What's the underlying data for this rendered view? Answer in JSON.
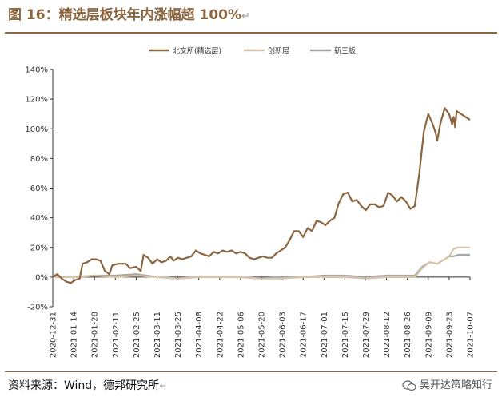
{
  "header": {
    "title": "图 16：精选层板块年内涨幅超 100%",
    "return_mark": "↵"
  },
  "footer": {
    "source": "资料来源：Wind，德邦研究所",
    "return_mark": "↵",
    "watermark": "吴开达策略知行"
  },
  "chart_data": {
    "type": "line",
    "title": "",
    "xlabel": "",
    "ylabel": "",
    "ylim": [
      -20,
      140
    ],
    "y_unit": "%",
    "yticks": [
      "140%",
      "120%",
      "100%",
      "80%",
      "60%",
      "40%",
      "20%",
      "0%",
      "-20%"
    ],
    "xticks": [
      "2020-12-31",
      "2021-01-14",
      "2021-01-28",
      "2021-02-11",
      "2021-02-25",
      "2021-03-11",
      "2021-03-25",
      "2021-04-08",
      "2021-04-22",
      "2021-05-06",
      "2021-05-20",
      "2021-06-03",
      "2021-06-17",
      "2021-07-01",
      "2021-07-15",
      "2021-07-29",
      "2021-08-12",
      "2021-08-26",
      "2021-09-09",
      "2021-09-23",
      "2021-10-07"
    ],
    "legend_position": "top",
    "grid": false,
    "series": [
      {
        "name": "北交所(精选层)",
        "color": "#8B6640",
        "points": [
          [
            "2020-12-31",
            0
          ],
          [
            "2021-01-03",
            2
          ],
          [
            "2021-01-06",
            -1
          ],
          [
            "2021-01-09",
            -3
          ],
          [
            "2021-01-12",
            -4
          ],
          [
            "2021-01-15",
            -2
          ],
          [
            "2021-01-18",
            -1
          ],
          [
            "2021-01-20",
            9
          ],
          [
            "2021-01-23",
            10
          ],
          [
            "2021-01-26",
            12
          ],
          [
            "2021-01-29",
            12
          ],
          [
            "2021-02-01",
            11
          ],
          [
            "2021-02-04",
            4
          ],
          [
            "2021-02-07",
            2
          ],
          [
            "2021-02-09",
            8
          ],
          [
            "2021-02-13",
            9
          ],
          [
            "2021-02-18",
            9
          ],
          [
            "2021-02-21",
            6
          ],
          [
            "2021-02-25",
            7
          ],
          [
            "2021-02-28",
            4
          ],
          [
            "2021-03-02",
            15
          ],
          [
            "2021-03-05",
            13
          ],
          [
            "2021-03-08",
            9
          ],
          [
            "2021-03-11",
            12
          ],
          [
            "2021-03-14",
            10
          ],
          [
            "2021-03-17",
            11
          ],
          [
            "2021-03-20",
            14
          ],
          [
            "2021-03-22",
            11
          ],
          [
            "2021-03-25",
            13
          ],
          [
            "2021-03-28",
            12
          ],
          [
            "2021-03-31",
            13
          ],
          [
            "2021-04-03",
            14
          ],
          [
            "2021-04-06",
            18
          ],
          [
            "2021-04-09",
            16
          ],
          [
            "2021-04-12",
            15
          ],
          [
            "2021-04-15",
            14
          ],
          [
            "2021-04-18",
            17
          ],
          [
            "2021-04-21",
            16
          ],
          [
            "2021-04-24",
            18
          ],
          [
            "2021-04-27",
            17
          ],
          [
            "2021-04-30",
            18
          ],
          [
            "2021-05-03",
            16
          ],
          [
            "2021-05-06",
            17
          ],
          [
            "2021-05-09",
            16
          ],
          [
            "2021-05-12",
            13
          ],
          [
            "2021-05-15",
            12
          ],
          [
            "2021-05-18",
            13
          ],
          [
            "2021-05-21",
            14
          ],
          [
            "2021-05-24",
            13
          ],
          [
            "2021-05-27",
            13
          ],
          [
            "2021-05-30",
            16
          ],
          [
            "2021-06-02",
            18
          ],
          [
            "2021-06-05",
            20
          ],
          [
            "2021-06-08",
            25
          ],
          [
            "2021-06-11",
            31
          ],
          [
            "2021-06-14",
            31
          ],
          [
            "2021-06-17",
            27
          ],
          [
            "2021-06-20",
            33
          ],
          [
            "2021-06-23",
            31
          ],
          [
            "2021-06-26",
            38
          ],
          [
            "2021-06-29",
            37
          ],
          [
            "2021-07-02",
            35
          ],
          [
            "2021-07-05",
            38
          ],
          [
            "2021-07-08",
            40
          ],
          [
            "2021-07-11",
            50
          ],
          [
            "2021-07-14",
            56
          ],
          [
            "2021-07-17",
            57
          ],
          [
            "2021-07-20",
            51
          ],
          [
            "2021-07-23",
            52
          ],
          [
            "2021-07-26",
            48
          ],
          [
            "2021-07-29",
            45
          ],
          [
            "2021-08-01",
            49
          ],
          [
            "2021-08-04",
            49
          ],
          [
            "2021-08-07",
            47
          ],
          [
            "2021-08-10",
            48
          ],
          [
            "2021-08-13",
            57
          ],
          [
            "2021-08-16",
            55
          ],
          [
            "2021-08-19",
            51
          ],
          [
            "2021-08-22",
            54
          ],
          [
            "2021-08-25",
            51
          ],
          [
            "2021-08-28",
            46
          ],
          [
            "2021-08-31",
            48
          ],
          [
            "2021-09-03",
            70
          ],
          [
            "2021-09-06",
            98
          ],
          [
            "2021-09-09",
            110
          ],
          [
            "2021-09-12",
            103
          ],
          [
            "2021-09-14",
            97
          ],
          [
            "2021-09-15",
            92
          ],
          [
            "2021-09-17",
            103
          ],
          [
            "2021-09-20",
            114
          ],
          [
            "2021-09-23",
            110
          ],
          [
            "2021-09-25",
            103
          ],
          [
            "2021-09-26",
            108
          ],
          [
            "2021-09-27",
            101
          ],
          [
            "2021-09-28",
            112
          ],
          [
            "2021-10-01",
            110
          ],
          [
            "2021-10-04",
            108
          ],
          [
            "2021-10-07",
            106
          ]
        ]
      },
      {
        "name": "创新层",
        "color": "#D8C4A6",
        "points": [
          [
            "2020-12-31",
            0
          ],
          [
            "2021-01-14",
            0
          ],
          [
            "2021-01-28",
            1
          ],
          [
            "2021-02-11",
            0
          ],
          [
            "2021-02-25",
            1
          ],
          [
            "2021-03-11",
            0
          ],
          [
            "2021-03-25",
            -1
          ],
          [
            "2021-04-08",
            0
          ],
          [
            "2021-04-22",
            0
          ],
          [
            "2021-05-06",
            0
          ],
          [
            "2021-05-20",
            -1
          ],
          [
            "2021-06-03",
            -1
          ],
          [
            "2021-06-17",
            0
          ],
          [
            "2021-07-01",
            0
          ],
          [
            "2021-07-15",
            0
          ],
          [
            "2021-07-29",
            -1
          ],
          [
            "2021-08-12",
            0
          ],
          [
            "2021-08-26",
            0
          ],
          [
            "2021-08-31",
            0
          ],
          [
            "2021-09-05",
            6
          ],
          [
            "2021-09-10",
            10
          ],
          [
            "2021-09-15",
            9
          ],
          [
            "2021-09-20",
            12
          ],
          [
            "2021-09-23",
            14
          ],
          [
            "2021-09-26",
            19
          ],
          [
            "2021-09-29",
            20
          ],
          [
            "2021-10-07",
            20
          ]
        ]
      },
      {
        "name": "新三板",
        "color": "#A6A6A6",
        "points": [
          [
            "2020-12-31",
            0
          ],
          [
            "2021-01-14",
            0
          ],
          [
            "2021-01-28",
            1
          ],
          [
            "2021-02-11",
            1
          ],
          [
            "2021-02-25",
            2
          ],
          [
            "2021-03-11",
            0
          ],
          [
            "2021-03-25",
            -1
          ],
          [
            "2021-04-08",
            0
          ],
          [
            "2021-04-22",
            0
          ],
          [
            "2021-05-06",
            0
          ],
          [
            "2021-05-20",
            -1
          ],
          [
            "2021-06-03",
            0
          ],
          [
            "2021-06-17",
            0
          ],
          [
            "2021-07-01",
            1
          ],
          [
            "2021-07-15",
            1
          ],
          [
            "2021-07-29",
            0
          ],
          [
            "2021-08-12",
            1
          ],
          [
            "2021-08-26",
            1
          ],
          [
            "2021-08-31",
            1
          ],
          [
            "2021-09-05",
            7
          ],
          [
            "2021-09-10",
            10
          ],
          [
            "2021-09-15",
            9
          ],
          [
            "2021-09-20",
            12
          ],
          [
            "2021-09-23",
            14
          ],
          [
            "2021-09-26",
            14
          ],
          [
            "2021-09-29",
            15
          ],
          [
            "2021-10-07",
            15
          ]
        ]
      }
    ]
  }
}
